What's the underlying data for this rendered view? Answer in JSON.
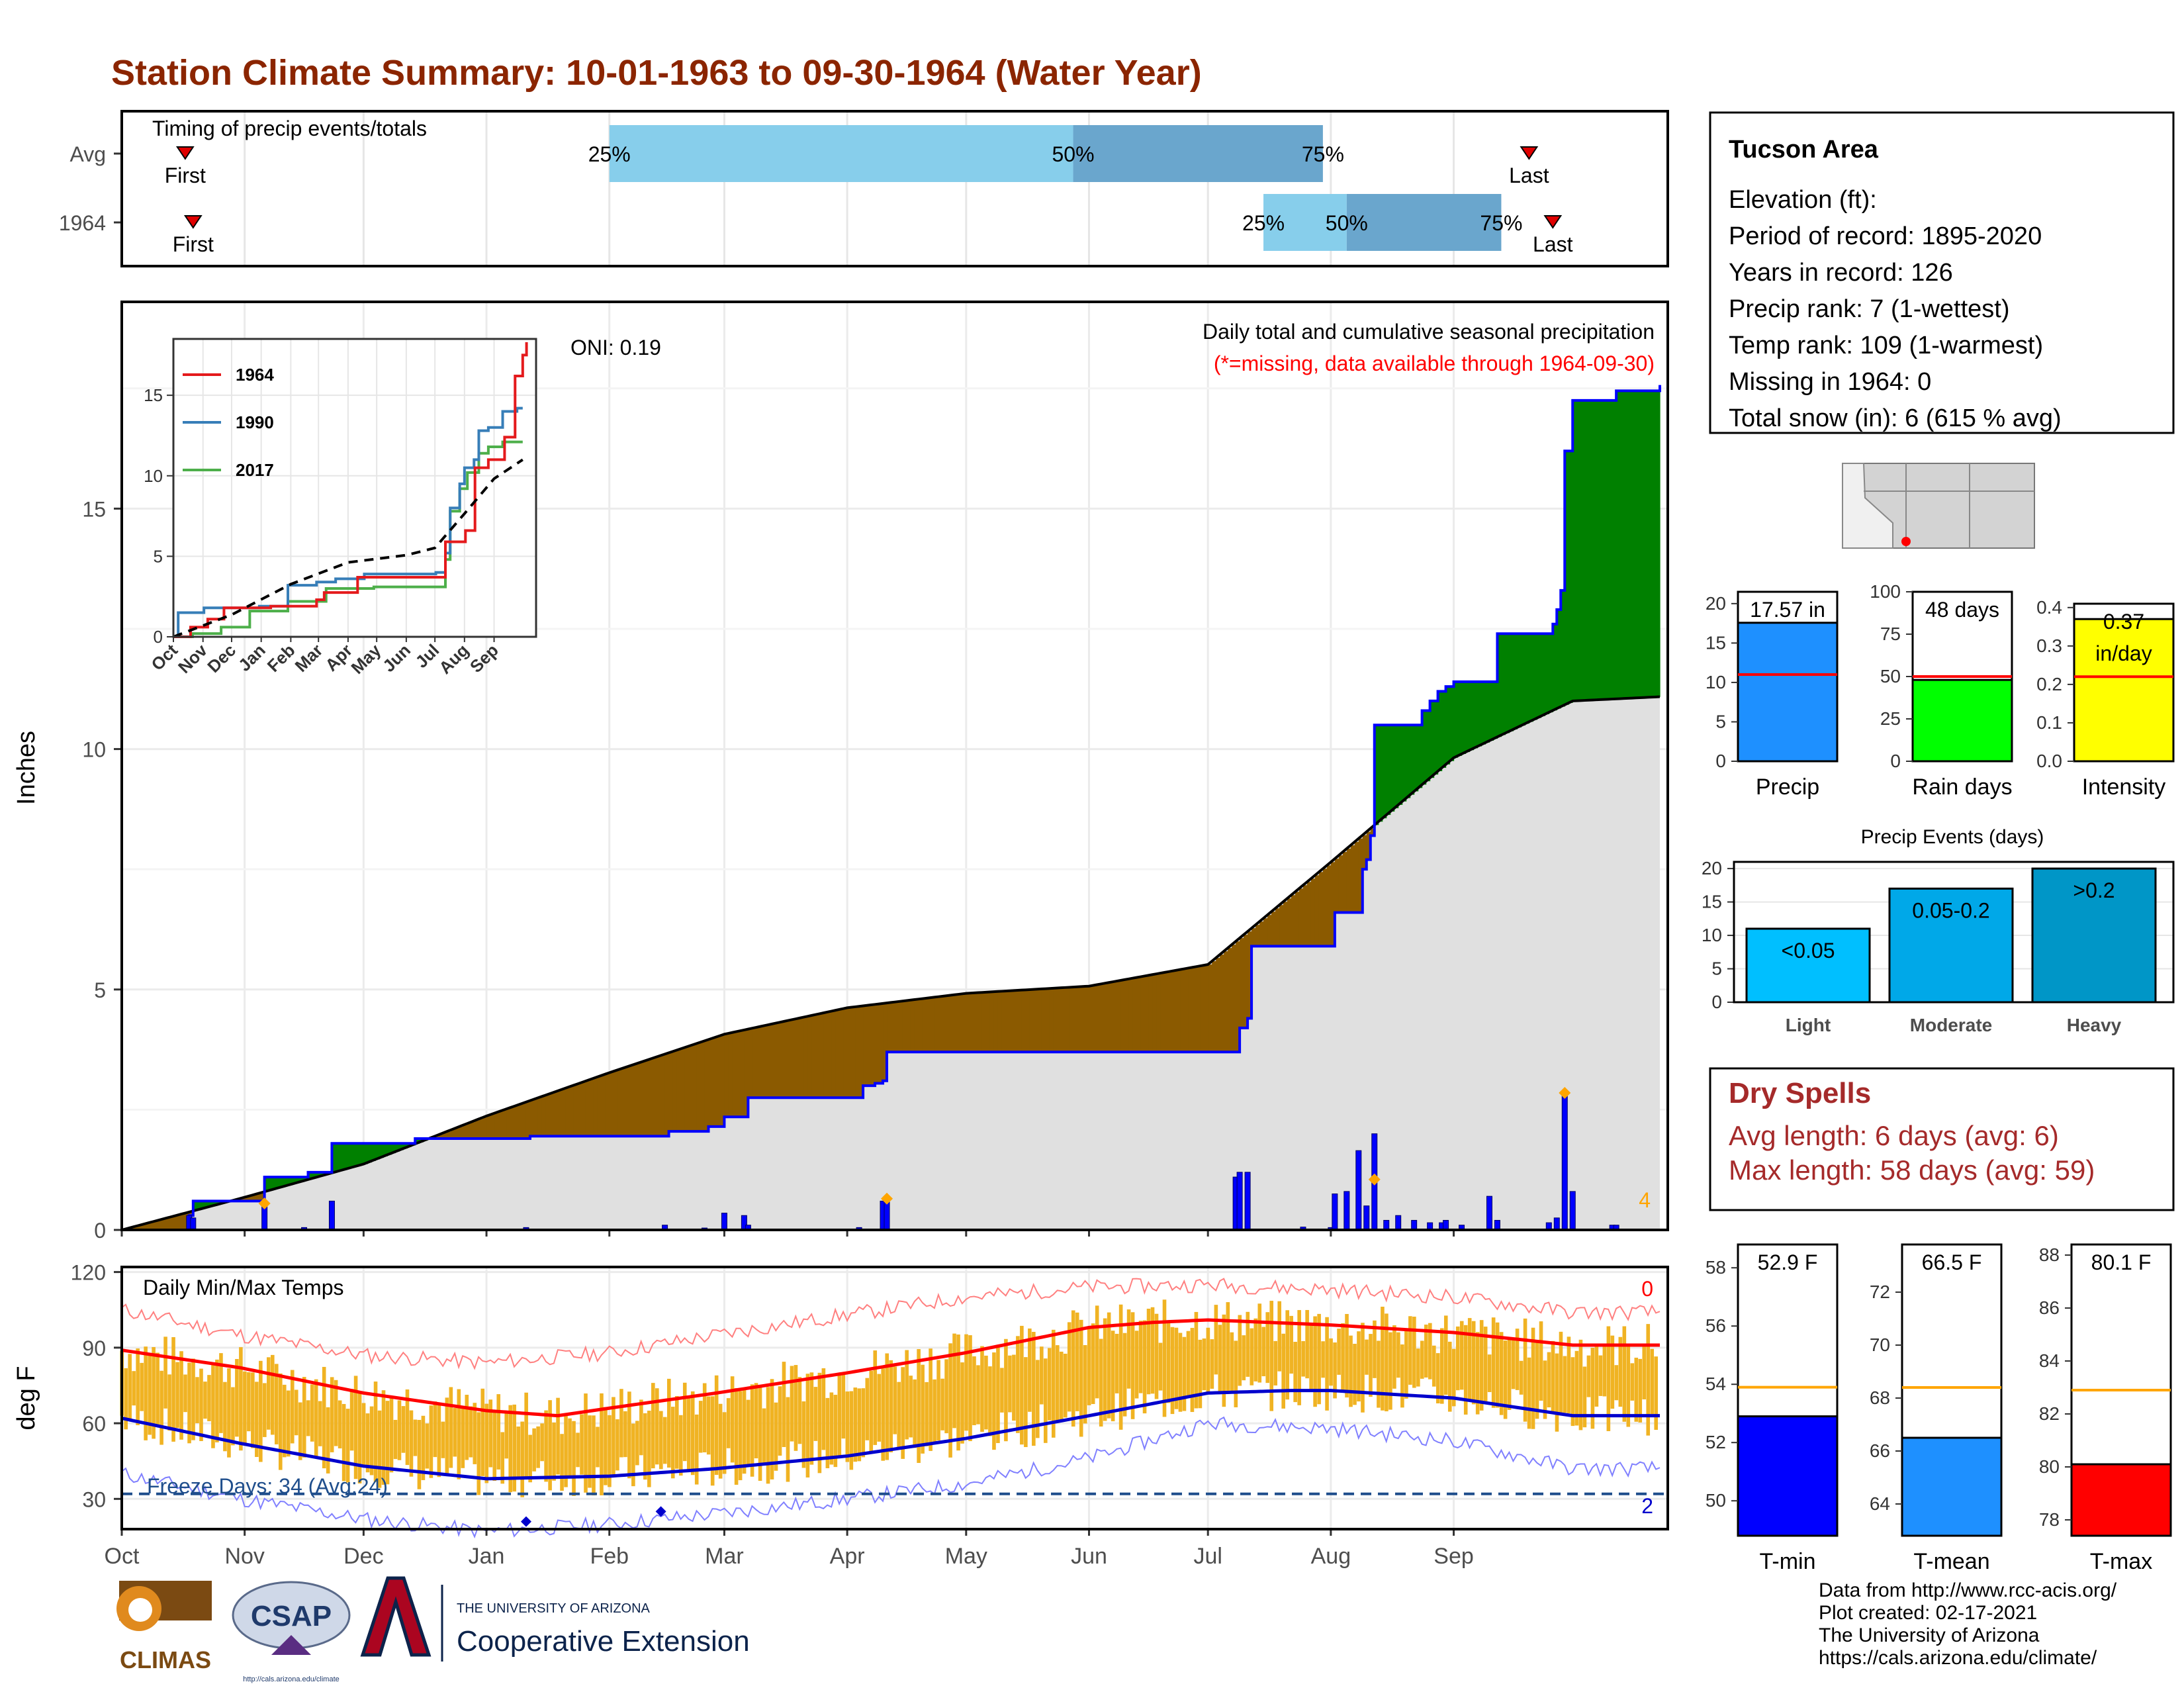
{
  "title": "Station Climate Summary: 10-01-1963 to 09-30-1964 (Water Year)",
  "months": [
    "Oct",
    "Nov",
    "Dec",
    "Jan",
    "Feb",
    "Mar",
    "Apr",
    "May",
    "Jun",
    "Jul",
    "Aug",
    "Sep"
  ],
  "timing": {
    "title": "Timing of precip events/totals",
    "row_labels": [
      "Avg",
      "1964"
    ],
    "first_label": "First",
    "last_label": "Last",
    "pct_labels": [
      "25%",
      "50%",
      "75%"
    ],
    "avg": {
      "first_day": 16,
      "last_day": 355,
      "p25_day": 123,
      "p50_day": 240,
      "p75_day": 303
    },
    "year": {
      "first_day": 18,
      "last_day": 361,
      "p25_day": 288,
      "p50_day": 309,
      "p75_day": 348
    }
  },
  "precip": {
    "ylabel": "Inches",
    "ylim": [
      0,
      19.3
    ],
    "yticks": [
      0,
      5,
      10,
      15
    ],
    "oni_label": "ONI: 0.19",
    "caption": "Daily total and cumulative seasonal precipitation",
    "missing_note": "(*=missing, data available through 1964-09-30)",
    "corner_count": "4",
    "cumulative_1964": [
      [
        0,
        0
      ],
      [
        17,
        0.3
      ],
      [
        18,
        0.6
      ],
      [
        35,
        0.6
      ],
      [
        36,
        1.1
      ],
      [
        46,
        1.1
      ],
      [
        47,
        1.2
      ],
      [
        52,
        1.2
      ],
      [
        53,
        1.8
      ],
      [
        73,
        1.8
      ],
      [
        74,
        1.9
      ],
      [
        102,
        1.9
      ],
      [
        103,
        1.95
      ],
      [
        137,
        1.95
      ],
      [
        138,
        2.05
      ],
      [
        147,
        2.05
      ],
      [
        148,
        2.15
      ],
      [
        151,
        2.15
      ],
      [
        152,
        2.35
      ],
      [
        157,
        2.35
      ],
      [
        158,
        2.75
      ],
      [
        186,
        2.75
      ],
      [
        187,
        3.0
      ],
      [
        190,
        3.05
      ],
      [
        192,
        3.1
      ],
      [
        193,
        3.7
      ],
      [
        281,
        3.7
      ],
      [
        282,
        4.2
      ],
      [
        284,
        4.4
      ],
      [
        285,
        5.9
      ],
      [
        305,
        5.9
      ],
      [
        306,
        6.6
      ],
      [
        312,
        6.6
      ],
      [
        313,
        7.5
      ],
      [
        314,
        7.7
      ],
      [
        315,
        8.2
      ],
      [
        316,
        10.5
      ],
      [
        327,
        10.5
      ],
      [
        328,
        10.8
      ],
      [
        330,
        11.0
      ],
      [
        332,
        11.2
      ],
      [
        334,
        11.3
      ],
      [
        336,
        11.4
      ],
      [
        346,
        11.4
      ],
      [
        347,
        12.4
      ],
      [
        360,
        12.4
      ],
      [
        361,
        12.6
      ],
      [
        362,
        12.9
      ],
      [
        363,
        13.3
      ],
      [
        364,
        16.2
      ],
      [
        365,
        16.2
      ],
      [
        366,
        17.25
      ],
      [
        376,
        17.25
      ],
      [
        377,
        17.45
      ],
      [
        388,
        17.57
      ]
    ],
    "average_cumulative": [
      [
        0,
        0
      ],
      [
        31,
        0.68
      ],
      [
        61,
        1.37
      ],
      [
        92,
        2.37
      ],
      [
        123,
        3.27
      ],
      [
        152,
        4.07
      ],
      [
        183,
        4.62
      ],
      [
        213,
        4.92
      ],
      [
        244,
        5.07
      ],
      [
        274,
        5.52
      ],
      [
        305,
        7.65
      ],
      [
        336,
        9.82
      ],
      [
        366,
        11.0
      ]
    ],
    "daily_bars": [
      [
        17,
        0.3
      ],
      [
        18,
        0.25
      ],
      [
        36,
        0.5
      ],
      [
        53,
        0.6
      ],
      [
        46,
        0.05
      ],
      [
        102,
        0.05
      ],
      [
        137,
        0.1
      ],
      [
        147,
        0.04
      ],
      [
        152,
        0.35
      ],
      [
        157,
        0.3
      ],
      [
        158,
        0.1
      ],
      [
        186,
        0.05
      ],
      [
        192,
        0.6
      ],
      [
        193,
        0.65
      ],
      [
        281,
        1.1
      ],
      [
        282,
        1.2
      ],
      [
        284,
        1.2
      ],
      [
        298,
        0.06
      ],
      [
        305,
        0.05
      ],
      [
        306,
        0.75
      ],
      [
        309,
        0.8
      ],
      [
        312,
        1.65
      ],
      [
        314,
        0.5
      ],
      [
        316,
        2.0
      ],
      [
        319,
        0.2
      ],
      [
        322,
        0.3
      ],
      [
        326,
        0.2
      ],
      [
        330,
        0.15
      ],
      [
        333,
        0.15
      ],
      [
        334,
        0.2
      ],
      [
        338,
        0.1
      ],
      [
        345,
        0.7
      ],
      [
        347,
        0.2
      ],
      [
        360,
        0.15
      ],
      [
        362,
        0.25
      ],
      [
        364,
        2.8
      ],
      [
        366,
        0.8
      ],
      [
        376,
        0.1
      ],
      [
        377,
        0.1
      ]
    ],
    "extreme_markers": [
      [
        36,
        0.55
      ],
      [
        193,
        0.65
      ],
      [
        316,
        1.05
      ],
      [
        364,
        2.85
      ]
    ]
  },
  "inset": {
    "legend": [
      "1964",
      "1990",
      "2017"
    ],
    "colors": [
      "#e41a1c",
      "#377eb8",
      "#4daf4a"
    ],
    "ylim": [
      0,
      18.5
    ],
    "yticks": [
      0,
      5,
      10,
      15
    ],
    "xticks": [
      "Oct",
      "Nov",
      "Dec",
      "Jan",
      "Feb",
      "Mar",
      "Apr",
      "May",
      "Jun",
      "Jul",
      "Aug",
      "Sep"
    ],
    "series_1990": [
      [
        0,
        0
      ],
      [
        5,
        1.5
      ],
      [
        30,
        1.5
      ],
      [
        32,
        1.8
      ],
      [
        90,
        1.9
      ],
      [
        120,
        3.2
      ],
      [
        150,
        3.4
      ],
      [
        170,
        3.6
      ],
      [
        200,
        3.9
      ],
      [
        250,
        3.9
      ],
      [
        275,
        4.0
      ],
      [
        285,
        5.2
      ],
      [
        290,
        8.0
      ],
      [
        300,
        9.5
      ],
      [
        305,
        10.5
      ],
      [
        315,
        11.0
      ],
      [
        320,
        12.8
      ],
      [
        330,
        13.0
      ],
      [
        345,
        14.0
      ],
      [
        360,
        14.2
      ],
      [
        366,
        14.2
      ]
    ],
    "series_2017": [
      [
        0,
        0
      ],
      [
        20,
        0.2
      ],
      [
        50,
        0.6
      ],
      [
        80,
        1.6
      ],
      [
        120,
        2.2
      ],
      [
        160,
        3.0
      ],
      [
        190,
        3.0
      ],
      [
        210,
        3.1
      ],
      [
        270,
        3.1
      ],
      [
        285,
        4.8
      ],
      [
        290,
        7.8
      ],
      [
        300,
        9.2
      ],
      [
        308,
        10.2
      ],
      [
        320,
        11.4
      ],
      [
        330,
        11.8
      ],
      [
        345,
        12.1
      ],
      [
        366,
        12.1
      ]
    ],
    "series_1964": [
      [
        0,
        0
      ],
      [
        18,
        0.6
      ],
      [
        36,
        1.1
      ],
      [
        53,
        1.8
      ],
      [
        102,
        1.9
      ],
      [
        150,
        2.3
      ],
      [
        158,
        2.75
      ],
      [
        193,
        3.7
      ],
      [
        281,
        3.7
      ],
      [
        285,
        5.9
      ],
      [
        306,
        6.6
      ],
      [
        316,
        10.5
      ],
      [
        330,
        11.0
      ],
      [
        347,
        12.4
      ],
      [
        358,
        16.2
      ],
      [
        366,
        17.5
      ],
      [
        370,
        18.3
      ]
    ],
    "series_avg": [
      [
        0,
        0
      ],
      [
        61,
        1.37
      ],
      [
        123,
        3.27
      ],
      [
        183,
        4.62
      ],
      [
        244,
        5.07
      ],
      [
        274,
        5.52
      ],
      [
        305,
        7.65
      ],
      [
        336,
        9.82
      ],
      [
        366,
        11.0
      ]
    ]
  },
  "temps": {
    "ylabel": "deg F",
    "title": "Daily Min/Max Temps",
    "ylim": [
      18,
      122
    ],
    "yticks": [
      30,
      60,
      90,
      120
    ],
    "freeze_line": 32,
    "freeze_label": "Freeze Days: 34 (Avg:24)",
    "top_count": "0",
    "bottom_count": "2",
    "avg_max_curve": [
      [
        0,
        89
      ],
      [
        30,
        82
      ],
      [
        61,
        72
      ],
      [
        92,
        65
      ],
      [
        110,
        63
      ],
      [
        123,
        66
      ],
      [
        150,
        72
      ],
      [
        183,
        80
      ],
      [
        213,
        88
      ],
      [
        244,
        98
      ],
      [
        260,
        100
      ],
      [
        274,
        101
      ],
      [
        305,
        99
      ],
      [
        336,
        96
      ],
      [
        366,
        91
      ]
    ],
    "avg_min_curve": [
      [
        0,
        62
      ],
      [
        30,
        52
      ],
      [
        61,
        43
      ],
      [
        92,
        38
      ],
      [
        123,
        39
      ],
      [
        150,
        42
      ],
      [
        183,
        47
      ],
      [
        213,
        54
      ],
      [
        244,
        63
      ],
      [
        274,
        72
      ],
      [
        295,
        73
      ],
      [
        305,
        73
      ],
      [
        336,
        70
      ],
      [
        366,
        63
      ]
    ],
    "record_max_curve": [
      [
        0,
        105
      ],
      [
        30,
        95
      ],
      [
        61,
        87
      ],
      [
        92,
        84
      ],
      [
        123,
        88
      ],
      [
        150,
        95
      ],
      [
        183,
        103
      ],
      [
        213,
        110
      ],
      [
        244,
        114
      ],
      [
        274,
        115
      ],
      [
        305,
        113
      ],
      [
        336,
        110
      ],
      [
        366,
        104
      ]
    ],
    "record_min_curve": [
      [
        0,
        40
      ],
      [
        30,
        30
      ],
      [
        61,
        22
      ],
      [
        92,
        17
      ],
      [
        123,
        20
      ],
      [
        150,
        24
      ],
      [
        183,
        30
      ],
      [
        213,
        36
      ],
      [
        244,
        46
      ],
      [
        274,
        60
      ],
      [
        305,
        58
      ],
      [
        336,
        53
      ],
      [
        366,
        42
      ]
    ],
    "record_low_marks": [
      [
        102,
        21
      ],
      [
        136,
        25
      ]
    ]
  },
  "station": {
    "name": "Tucson Area",
    "lines": [
      "Elevation (ft):",
      "Period of record: 1895-2020",
      "Years in record: 126",
      "Precip rank: 7 (1-wettest)",
      "Temp rank: 109 (1-warmest)",
      "Missing in 1964: 0",
      "Total snow (in): 6 (615 % avg)"
    ]
  },
  "summary_bars": [
    {
      "label": "Precip",
      "value": 17.57,
      "avg": 11.0,
      "text": "17.57 in",
      "color": "#1e90ff",
      "ylim": [
        0,
        21.5
      ],
      "ticks": [
        0,
        5,
        10,
        15,
        20
      ]
    },
    {
      "label": "Rain days",
      "value": 48,
      "avg": 50,
      "text": "48 days",
      "color": "#00ff00",
      "ylim": [
        0,
        100
      ],
      "ticks": [
        0,
        25,
        50,
        75,
        100
      ]
    },
    {
      "label": "Intensity",
      "value": 0.37,
      "avg": 0.22,
      "text": "0.37",
      "text2": "in/day",
      "color": "#ffff00",
      "ylim": [
        0,
        0.41
      ],
      "ticks": [
        0.0,
        0.1,
        0.2,
        0.3,
        0.4
      ]
    }
  ],
  "events": {
    "title": "Precip Events (days)",
    "categories": [
      "Light",
      "Moderate",
      "Heavy"
    ],
    "values": [
      11,
      17,
      20
    ],
    "labels": [
      "<0.05",
      "0.05-0.2",
      ">0.2"
    ],
    "colors": [
      "#00bfff",
      "#00a8e8",
      "#0096c7"
    ],
    "ylim": [
      0,
      21
    ],
    "ticks": [
      0,
      5,
      10,
      15,
      20
    ]
  },
  "dry_spells": {
    "title": "Dry Spells",
    "lines": [
      "Avg length: 6 days (avg: 6)",
      "Max length: 58 days (avg: 59)"
    ],
    "color": "#a52a2a"
  },
  "temp_bars": [
    {
      "label": "T-min",
      "value": 52.9,
      "avg": 53.9,
      "text": "52.9 F",
      "color": "#0000ff",
      "ylim": [
        48.8,
        58.8
      ],
      "ticks": [
        50,
        52,
        54,
        56,
        58
      ]
    },
    {
      "label": "T-mean",
      "value": 66.5,
      "avg": 68.4,
      "text": "66.5 F",
      "color": "#1e90ff",
      "ylim": [
        62.8,
        73.8
      ],
      "ticks": [
        64,
        66,
        68,
        70,
        72
      ]
    },
    {
      "label": "T-max",
      "value": 80.1,
      "avg": 82.9,
      "text": "80.1 F",
      "color": "#ff0000",
      "ylim": [
        77.4,
        88.4
      ],
      "ticks": [
        78,
        80,
        82,
        84,
        86,
        88
      ]
    }
  ],
  "footer": {
    "lines": [
      "Data from http://www.rcc-acis.org/",
      "Plot created: 02-17-2021",
      "The University of Arizona",
      "https://cals.arizona.edu/climate/"
    ],
    "logo_climas": "CLIMAS",
    "logo_csap": "CSAP",
    "logo_csap_url": "http://cals.arizona.edu/climate",
    "ua_line1": "THE UNIVERSITY OF ARIZONA",
    "ua_line2": "Cooperative Extension"
  },
  "colors": {
    "title": "#8b2500",
    "above_avg": "#008000",
    "below_avg": "#8b5a00",
    "cum_line": "#0000ff",
    "avg_fill": "#e0e0e0",
    "temp_bar": "#f0b323",
    "timing_light": "#87ceeb",
    "timing_dark": "#6aa6cd"
  }
}
